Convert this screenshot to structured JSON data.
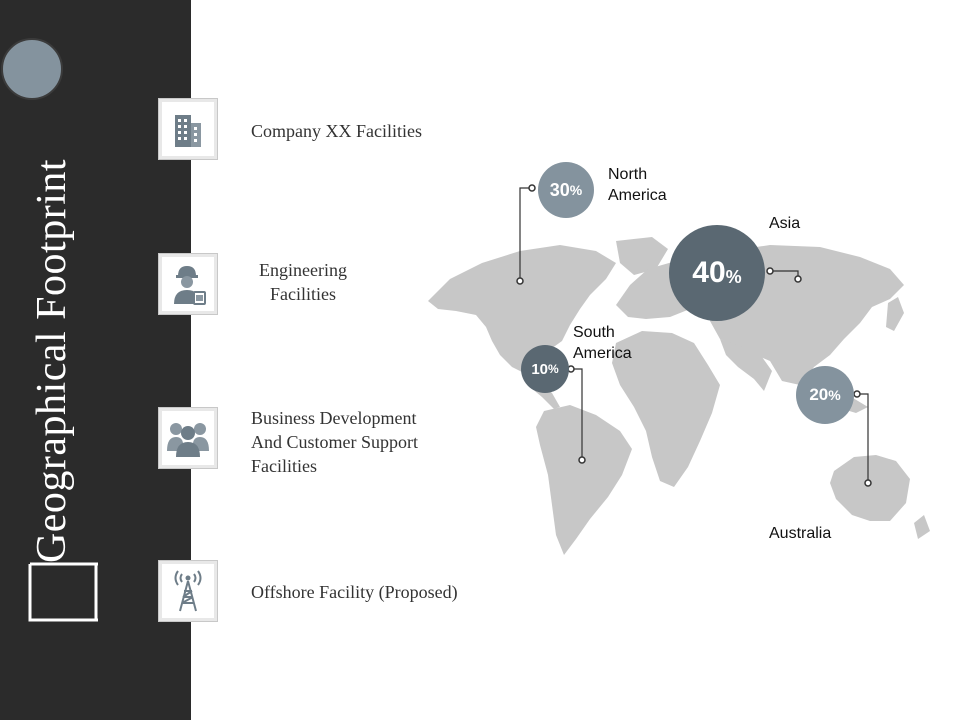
{
  "title": "Geographical Footprint",
  "colors": {
    "sidebar": "#2b2b2b",
    "bubble_light": "#84939e",
    "bubble_dark": "#5a6872",
    "map_fill": "#c7c7c7",
    "icon": "#6e7d88"
  },
  "features": [
    {
      "icon": "building-icon",
      "label_lines": [
        "Company XX Facilities"
      ]
    },
    {
      "icon": "engineer-icon",
      "label_lines": [
        "Engineering",
        "Facilities"
      ]
    },
    {
      "icon": "team-icon",
      "label_lines": [
        "Business Development",
        "And Customer Support",
        "Facilities"
      ]
    },
    {
      "icon": "tower-icon",
      "label_lines": [
        "Offshore Facility (Proposed)"
      ]
    }
  ],
  "regions": [
    {
      "name_lines": [
        "North",
        "America"
      ],
      "value": "30",
      "unit": "%"
    },
    {
      "name_lines": [
        "Asia"
      ],
      "value": "40",
      "unit": "%"
    },
    {
      "name_lines": [
        "South",
        "America"
      ],
      "value": "10",
      "unit": "%"
    },
    {
      "name_lines": [
        "Australia"
      ],
      "value": "20",
      "unit": "%"
    }
  ]
}
